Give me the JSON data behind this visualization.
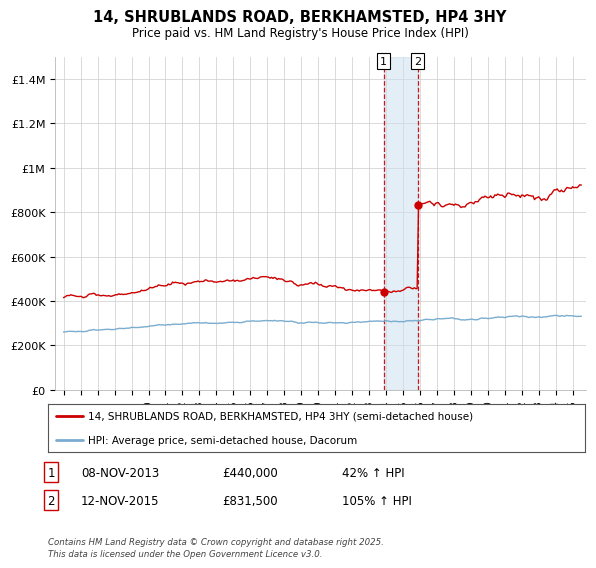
{
  "title": "14, SHRUBLANDS ROAD, BERKHAMSTED, HP4 3HY",
  "subtitle": "Price paid vs. HM Land Registry's House Price Index (HPI)",
  "xlim": [
    1994.5,
    2025.8
  ],
  "ylim": [
    0,
    1500000
  ],
  "yticks": [
    0,
    200000,
    400000,
    600000,
    800000,
    1000000,
    1200000,
    1400000
  ],
  "ytick_labels": [
    "£0",
    "£200K",
    "£400K",
    "£600K",
    "£800K",
    "£1M",
    "£1.2M",
    "£1.4M"
  ],
  "red_color": "#cc0000",
  "blue_color": "#7aadcf",
  "legend_red_label": "14, SHRUBLANDS ROAD, BERKHAMSTED, HP4 3HY (semi-detached house)",
  "legend_blue_label": "HPI: Average price, semi-detached house, Dacorum",
  "transaction1_date": 2013.86,
  "transaction1_price": 440000,
  "transaction1_label": "08-NOV-2013",
  "transaction1_price_label": "£440,000",
  "transaction1_pct": "42% ↑ HPI",
  "transaction2_date": 2015.87,
  "transaction2_price": 831500,
  "transaction2_label": "12-NOV-2015",
  "transaction2_price_label": "£831,500",
  "transaction2_pct": "105% ↑ HPI",
  "footnote": "Contains HM Land Registry data © Crown copyright and database right 2025.\nThis data is licensed under the Open Government Licence v3.0.",
  "grid_color": "#cccccc",
  "shade_color": "#cce0f0"
}
